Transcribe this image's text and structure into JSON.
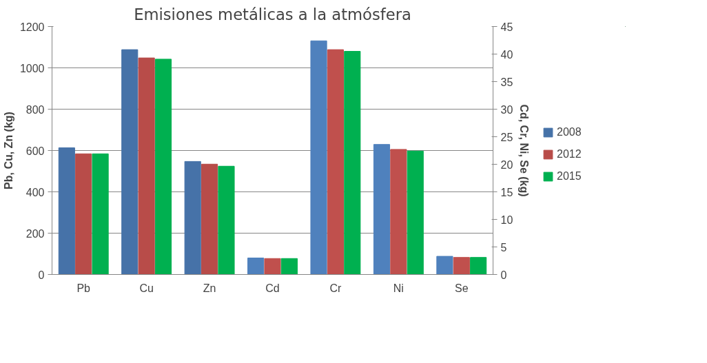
{
  "chart_data": {
    "type": "bar",
    "title": "Emisiones metálicas a la atmósfera",
    "ylabel": "Pb, Cu, Zn (kg)",
    "y2label": "Cd, Cr, Ni, Se (kg)",
    "categories": [
      "Pb",
      "Cu",
      "Zn",
      "Cd",
      "Cr",
      "Ni",
      "Se"
    ],
    "ylim": [
      0,
      1200
    ],
    "yticks": [
      0,
      200,
      400,
      600,
      800,
      1000,
      1200
    ],
    "y2lim": [
      0,
      45
    ],
    "y2ticks": [
      0,
      5,
      10,
      15,
      20,
      25,
      30,
      35,
      40,
      45
    ],
    "grid": "y",
    "legend": "right",
    "series": [
      {
        "name": "2008",
        "color": "#4672a8",
        "values": [
          613,
          1088,
          547,
          null,
          null,
          null,
          null
        ]
      },
      {
        "name": "2012",
        "color": "#b84c49",
        "values": [
          584,
          1048,
          534,
          null,
          null,
          null,
          null
        ]
      },
      {
        "name": "2015",
        "color": "#00b050",
        "values": [
          584,
          1042,
          524,
          null,
          null,
          null,
          null
        ]
      },
      {
        "color": "#4f81bd",
        "axis": "y2",
        "values": [
          null,
          null,
          null,
          3.0,
          42.4,
          23.6,
          3.3
        ]
      },
      {
        "color": "#c0504d",
        "axis": "y2",
        "values": [
          null,
          null,
          null,
          2.9,
          40.8,
          22.7,
          3.1
        ]
      },
      {
        "color": "#00b050",
        "axis": "y2",
        "values": [
          null,
          null,
          null,
          2.9,
          40.5,
          22.4,
          3.1
        ]
      }
    ]
  }
}
